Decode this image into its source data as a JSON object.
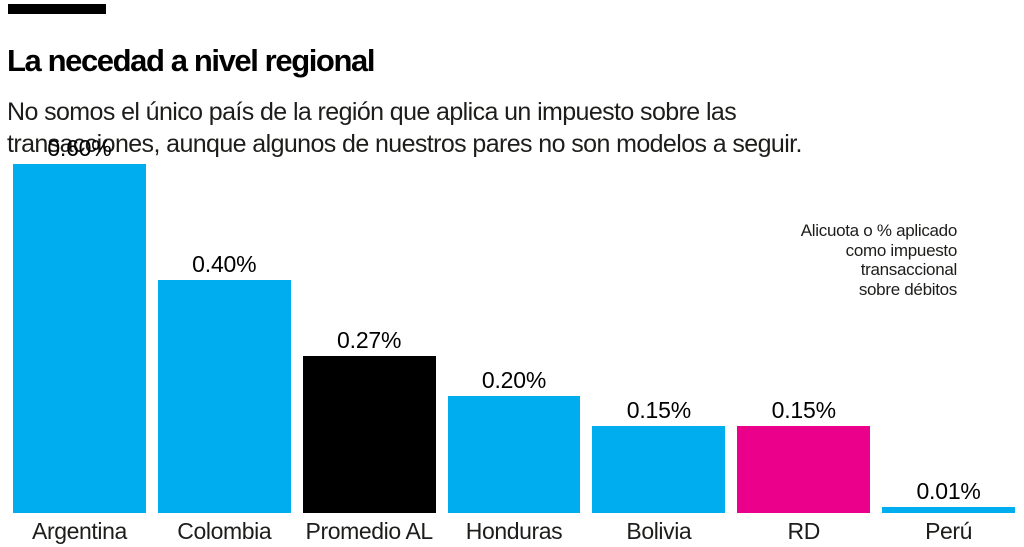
{
  "header": {
    "tag_color": "#000000",
    "title": "La necedad a nivel regional",
    "subtitle": "No somos el único país de la región que aplica un impuesto sobre las\ntransacciones, aunque algunos de nuestros pares no son modelos a seguir."
  },
  "annotation": {
    "text": "Alicuota o % aplicado\ncomo impuesto\ntransaccional\nsobre débitos"
  },
  "colors": {
    "cyan": "#00AEEF",
    "magenta": "#EB008B",
    "black": "#000000"
  },
  "chart_data": {
    "type": "bar",
    "title": "La necedad a nivel regional",
    "categories": [
      "Argentina",
      "Colombia",
      "Promedio AL",
      "Honduras",
      "Bolivia",
      "RD",
      "Perú"
    ],
    "values": [
      0.6,
      0.4,
      0.27,
      0.2,
      0.15,
      0.15,
      0.01
    ],
    "value_labels": [
      "0.60%",
      "0.40%",
      "0.27%",
      "0.20%",
      "0.15%",
      "0.15%",
      "0.01%"
    ],
    "bar_colors": [
      "#00AEEF",
      "#00AEEF",
      "#000000",
      "#00AEEF",
      "#00AEEF",
      "#EB008B",
      "#00AEEF"
    ],
    "xlabel": "",
    "ylabel": "Alicuota o % aplicado como impuesto transaccional sobre débitos",
    "ylim": [
      0,
      0.645
    ],
    "grid": false,
    "legend": false
  }
}
